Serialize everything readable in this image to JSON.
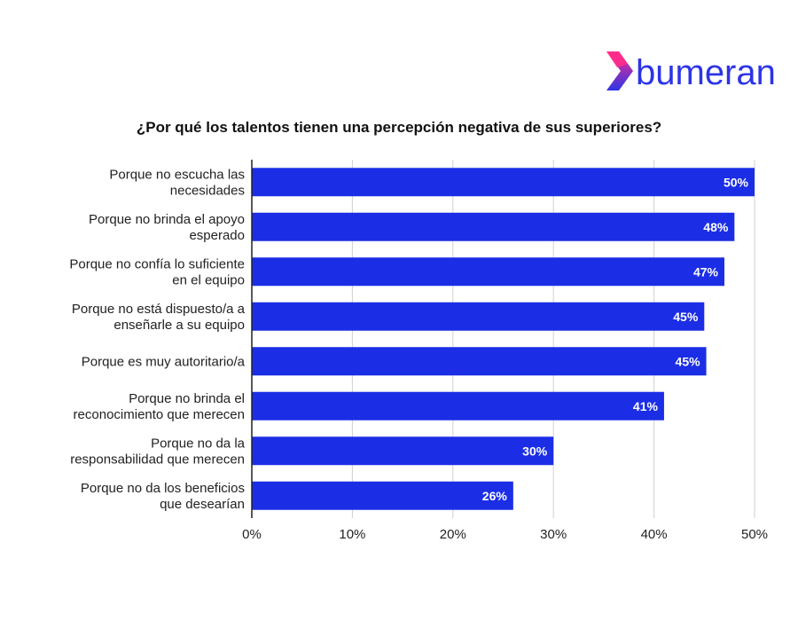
{
  "brand": {
    "name": "bumeran",
    "icon": "bumeran-chevron-logo",
    "colors": {
      "text": "#2d34e6",
      "chevron_top": "#ff2d8a",
      "chevron_bottom": "#2d34e6"
    }
  },
  "chart_data": {
    "type": "bar",
    "orientation": "horizontal",
    "title": "¿Por qué los talentos tienen una percepción negativa de sus superiores?",
    "categories": [
      [
        "Porque no escucha las",
        "necesidades"
      ],
      [
        "Porque no brinda el apoyo",
        "esperado"
      ],
      [
        "Porque no confía lo suficiente",
        "en el equipo"
      ],
      [
        "Porque no está dispuesto/a a",
        "enseñarle a su equipo"
      ],
      [
        "Porque es muy autoritario/a"
      ],
      [
        "Porque no brinda el",
        "reconocimiento que merecen"
      ],
      [
        "Porque no da la",
        "responsabilidad que merecen"
      ],
      [
        "Porque no da los beneficios",
        "que desearían"
      ]
    ],
    "values": [
      50,
      48,
      47,
      45,
      45.2,
      41,
      30,
      26
    ],
    "data_labels": [
      "50%",
      "48%",
      "47%",
      "45%",
      "45%",
      "41%",
      "30%",
      "26%"
    ],
    "xlim": [
      0,
      50
    ],
    "x_ticks": [
      0,
      10,
      20,
      30,
      40,
      50
    ],
    "x_tick_labels": [
      "0%",
      "10%",
      "20%",
      "30%",
      "40%",
      "50%"
    ],
    "grid": "vertical",
    "legend": "none",
    "bar_color": "#1b2ee6",
    "grid_color": "#d0d0d0"
  }
}
